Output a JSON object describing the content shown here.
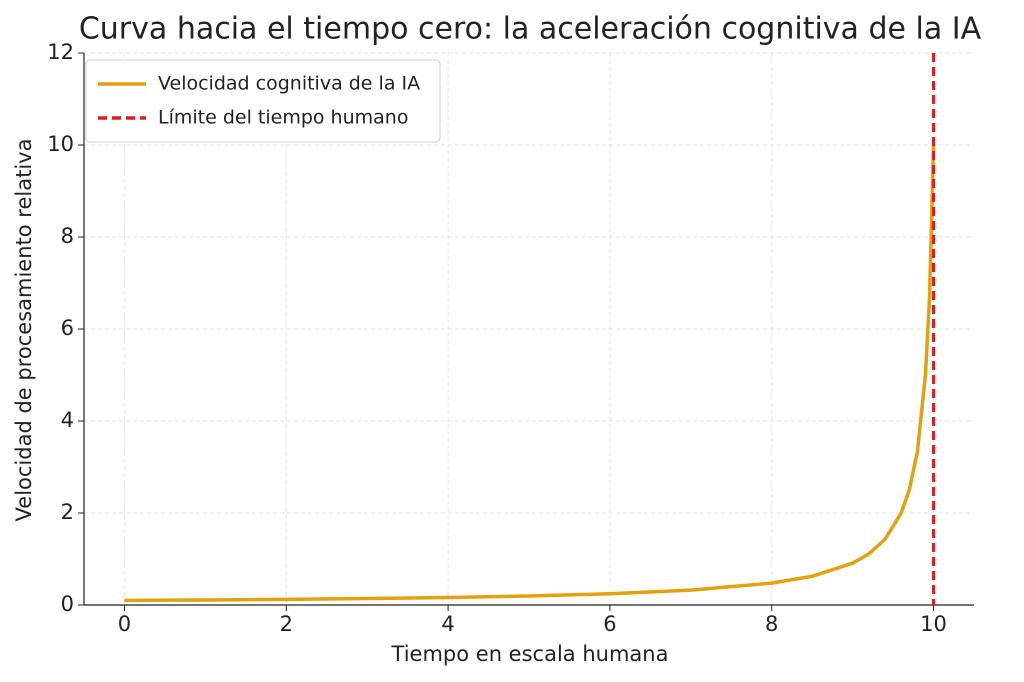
{
  "chart_data": {
    "type": "line",
    "title": "Curva hacia el tiempo cero: la aceleración cognitiva de la IA",
    "x_label": "Tiempo en escala humana",
    "y_label": "Velocidad de procesamiento relativa",
    "x": [
      0,
      1,
      2,
      3,
      4,
      5,
      6,
      7,
      8,
      8.5,
      9,
      9.2,
      9.4,
      9.6,
      9.7,
      9.8,
      9.9,
      9.95,
      10
    ],
    "series": [
      {
        "name": "Velocidad cognitiva de la IA",
        "color": "#e3a00f",
        "values": [
          0.1,
          0.11,
          0.123,
          0.141,
          0.164,
          0.196,
          0.244,
          0.323,
          0.476,
          0.625,
          0.909,
          1.111,
          1.429,
          2.0,
          2.5,
          3.333,
          5.0,
          6.667,
          10.0
        ]
      }
    ],
    "vlines": [
      {
        "x": 10,
        "name": "Límite del tiempo humano",
        "color": "#e31a1c",
        "style": "dashed"
      }
    ],
    "xlim": [
      -0.5,
      10.5
    ],
    "ylim": [
      0,
      12
    ],
    "xticks": [
      0,
      2,
      4,
      6,
      8,
      10
    ],
    "yticks": [
      0,
      2,
      4,
      6,
      8,
      10,
      12
    ],
    "grid": true,
    "legend": "upper-left"
  }
}
